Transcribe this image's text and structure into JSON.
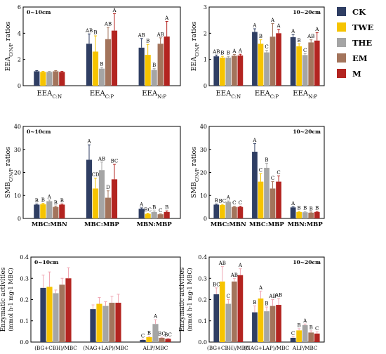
{
  "colors": {
    "CK": "#2f3e63",
    "TWE": "#f6c400",
    "THE": "#a5a5a5",
    "EM": "#a3745c",
    "M": "#b32420",
    "error_bar": "#f0a8b4"
  },
  "legend": {
    "items": [
      {
        "key": "CK",
        "label": "CK"
      },
      {
        "key": "TWE",
        "label": "TWE"
      },
      {
        "key": "THE",
        "label": "THE"
      },
      {
        "key": "EM",
        "label": "EM"
      },
      {
        "key": "M",
        "label": "M"
      }
    ]
  },
  "chart_data": [
    {
      "id": "a",
      "type": "bar",
      "depth_label": "0~10cm",
      "ylabel": "EEA C/N/P ratios",
      "ylabel_parts": {
        "base": "EEA",
        "sub": "C/N/P",
        "rest": " ratios"
      },
      "ylim": [
        0,
        6
      ],
      "yticks": [
        0,
        2,
        4,
        6
      ],
      "yticklabels": [
        "0",
        "2",
        "4",
        "6"
      ],
      "categories": [
        "EEA C:N",
        "EEA C:P",
        "EEA N:P"
      ],
      "category_parts": [
        {
          "base": "EEA",
          "sub": "C:N"
        },
        {
          "base": "EEA",
          "sub": "C:P"
        },
        {
          "base": "EEA",
          "sub": "N:P"
        }
      ],
      "series": [
        {
          "name": "CK",
          "values": [
            1.1,
            3.2,
            2.9
          ],
          "errors": [
            0.05,
            0.75,
            0.7
          ],
          "letters": [
            "",
            "AB",
            "AB"
          ]
        },
        {
          "name": "TWE",
          "values": [
            1.05,
            2.6,
            2.35
          ],
          "errors": [
            0.05,
            1.2,
            0.8
          ],
          "letters": [
            "",
            "B",
            "B"
          ]
        },
        {
          "name": "THE",
          "values": [
            1.05,
            1.3,
            1.2
          ],
          "errors": [
            0.05,
            0.1,
            0.1
          ],
          "letters": [
            "",
            "B",
            "B"
          ]
        },
        {
          "name": "EM",
          "values": [
            1.1,
            3.55,
            3.2
          ],
          "errors": [
            0.05,
            0.9,
            0.45
          ],
          "letters": [
            "",
            "AB",
            "AB"
          ]
        },
        {
          "name": "M",
          "values": [
            1.05,
            4.2,
            3.75
          ],
          "errors": [
            0.05,
            1.3,
            1.15
          ],
          "letters": [
            "",
            "A",
            "A"
          ]
        }
      ]
    },
    {
      "id": "b",
      "type": "bar",
      "depth_label": "10~20cm",
      "ylabel": "EEA C/N/P ratios",
      "ylabel_parts": {
        "base": "EEA",
        "sub": "C/N/P",
        "rest": " ratios"
      },
      "ylim": [
        0,
        3
      ],
      "yticks": [
        0,
        1,
        2,
        3
      ],
      "yticklabels": [
        "0",
        "1",
        "2",
        "3"
      ],
      "categories": [
        "EEA C:N",
        "EEA C:P",
        "EEA N:P"
      ],
      "category_parts": [
        {
          "base": "EEA",
          "sub": "C:N"
        },
        {
          "base": "EEA",
          "sub": "C:P"
        },
        {
          "base": "EEA",
          "sub": "N:P"
        }
      ],
      "series": [
        {
          "name": "CK",
          "values": [
            1.12,
            2.05,
            1.85
          ],
          "errors": [
            0.05,
            0.12,
            0.1
          ],
          "letters": [
            "AB",
            "A",
            "A"
          ]
        },
        {
          "name": "TWE",
          "values": [
            1.07,
            1.6,
            1.5
          ],
          "errors": [
            0.05,
            0.15,
            0.1
          ],
          "letters": [
            "B",
            "B",
            "B"
          ]
        },
        {
          "name": "THE",
          "values": [
            1.07,
            1.27,
            1.17
          ],
          "errors": [
            0.05,
            0.08,
            0.05
          ],
          "letters": [
            "B",
            "C",
            "C"
          ]
        },
        {
          "name": "EM",
          "values": [
            1.14,
            1.87,
            1.65
          ],
          "errors": [
            0.05,
            0.5,
            0.1
          ],
          "letters": [
            "A",
            "A",
            "AB"
          ]
        },
        {
          "name": "M",
          "values": [
            1.15,
            2.0,
            1.72
          ],
          "errors": [
            0.05,
            0.15,
            0.3
          ],
          "letters": [
            "A",
            "A",
            "A"
          ]
        }
      ]
    },
    {
      "id": "c",
      "type": "bar",
      "depth_label": "0~10cm",
      "ylabel": "SMB C/N/P ratios",
      "ylabel_parts": {
        "base": "SMB",
        "sub": "C/N/P",
        "rest": " ratios"
      },
      "ylim": [
        0,
        40
      ],
      "yticks": [
        0,
        10,
        20,
        30,
        40
      ],
      "yticklabels": [
        "0",
        "10",
        "20",
        "30",
        "40"
      ],
      "categories": [
        "MBC:MBN",
        "MBC:MBP",
        "MBN:MBP"
      ],
      "series": [
        {
          "name": "CK",
          "values": [
            6.0,
            25.5,
            4.2
          ],
          "errors": [
            0.3,
            6.5,
            0.4
          ],
          "letters": [
            "B",
            "A",
            "A"
          ]
        },
        {
          "name": "TWE",
          "values": [
            6.2,
            13.0,
            2.0
          ],
          "errors": [
            0.3,
            4.5,
            0.3
          ],
          "letters": [
            "B",
            "CD",
            "BC"
          ]
        },
        {
          "name": "THE",
          "values": [
            7.5,
            21.0,
            2.8
          ],
          "errors": [
            0.5,
            3.5,
            0.5
          ],
          "letters": [
            "A",
            "AB",
            "B"
          ]
        },
        {
          "name": "EM",
          "values": [
            5.0,
            9.0,
            1.8
          ],
          "errors": [
            0.4,
            3.0,
            0.2
          ],
          "letters": [
            "B",
            "D",
            "C"
          ]
        },
        {
          "name": "M",
          "values": [
            6.0,
            17.0,
            2.8
          ],
          "errors": [
            0.3,
            6.5,
            0.5
          ],
          "letters": [
            "B",
            "BC",
            "B"
          ]
        }
      ]
    },
    {
      "id": "d",
      "type": "bar",
      "depth_label": "10~20cm",
      "ylabel": "SMB C/N/P ratios",
      "ylabel_parts": {
        "base": "SMB",
        "sub": "C/N/P",
        "rest": " ratios"
      },
      "ylim": [
        0,
        40
      ],
      "yticks": [
        0,
        10,
        20,
        30,
        40
      ],
      "yticklabels": [
        "0",
        "10",
        "20",
        "30",
        "40"
      ],
      "categories": [
        "MBC:MBN",
        "MBC:MBP",
        "MBN:MBP"
      ],
      "series": [
        {
          "name": "CK",
          "values": [
            6.0,
            29.0,
            4.8
          ],
          "errors": [
            0.3,
            3.5,
            0.3
          ],
          "letters": [
            "B",
            "A",
            "A"
          ]
        },
        {
          "name": "TWE",
          "values": [
            5.8,
            16.0,
            2.8
          ],
          "errors": [
            0.3,
            3.5,
            0.3
          ],
          "letters": [
            "BC",
            "C",
            "B"
          ]
        },
        {
          "name": "THE",
          "values": [
            7.2,
            22.0,
            2.7
          ],
          "errors": [
            0.4,
            2.0,
            0.3
          ],
          "letters": [
            "A",
            "B",
            "B"
          ]
        },
        {
          "name": "EM",
          "values": [
            5.0,
            13.0,
            2.5
          ],
          "errors": [
            0.3,
            3.0,
            0.3
          ],
          "letters": [
            "C",
            "C",
            "B"
          ]
        },
        {
          "name": "M",
          "values": [
            5.0,
            16.0,
            2.8
          ],
          "errors": [
            0.3,
            2.5,
            0.3
          ],
          "letters": [
            "C",
            "C",
            "B"
          ]
        }
      ]
    },
    {
      "id": "e",
      "type": "bar",
      "depth_label": "0~10cm",
      "ylabel": "Enzymatic activities (mmol h-1 mg-1 MBC)",
      "ylabel_line1": "Enzymatic activities",
      "ylabel_line2": "(mmol h-1 mg-1 MBC)",
      "ylim": [
        0,
        0.4
      ],
      "yticks": [
        0,
        0.1,
        0.2,
        0.3,
        0.4
      ],
      "yticklabels": [
        "0.0",
        "0.1",
        "0.2",
        "0.3",
        "0.4"
      ],
      "categories": [
        "(BG+CBH)/MBC",
        "(NAG+LAP)/MBC",
        "ALP/MBC"
      ],
      "series": [
        {
          "name": "CK",
          "values": [
            0.255,
            0.155,
            0.01
          ],
          "errors": [
            0.06,
            0.02,
            0.003
          ],
          "letters": [
            "",
            "",
            "C"
          ]
        },
        {
          "name": "TWE",
          "values": [
            0.26,
            0.18,
            0.023
          ],
          "errors": [
            0.07,
            0.03,
            0.003
          ],
          "letters": [
            "",
            "",
            "B"
          ]
        },
        {
          "name": "THE",
          "values": [
            0.23,
            0.17,
            0.085
          ],
          "errors": [
            0.015,
            0.02,
            0.02
          ],
          "letters": [
            "",
            "",
            "A"
          ]
        },
        {
          "name": "EM",
          "values": [
            0.27,
            0.185,
            0.02
          ],
          "errors": [
            0.03,
            0.03,
            0.003
          ],
          "letters": [
            "",
            "",
            "BC"
          ]
        },
        {
          "name": "M",
          "values": [
            0.3,
            0.185,
            0.015
          ],
          "errors": [
            0.05,
            0.04,
            0.003
          ],
          "letters": [
            "",
            "",
            "BC"
          ]
        }
      ]
    },
    {
      "id": "f",
      "type": "bar",
      "depth_label": "10~20cm",
      "ylabel": "Enzymatic activities (mmol h-1 mg-1 MBC)",
      "ylabel_line1": "Enzymatic activities",
      "ylabel_line2": "(mmol h-1 mg-1 MBC)",
      "ylim": [
        0,
        0.4
      ],
      "yticks": [
        0,
        0.1,
        0.2,
        0.3,
        0.4
      ],
      "yticklabels": [
        "0.0",
        "0.1",
        "0.2",
        "0.3",
        "0.4"
      ],
      "categories": [
        "(BG+CBH)/MBC",
        "(NAG+LAP)/MBC",
        "ALP/MBC"
      ],
      "series": [
        {
          "name": "CK",
          "values": [
            0.225,
            0.14,
            0.02
          ],
          "errors": [
            0.03,
            0.03,
            0.005
          ],
          "letters": [
            "BC",
            "B",
            "C"
          ]
        },
        {
          "name": "TWE",
          "values": [
            0.285,
            0.205,
            0.055
          ],
          "errors": [
            0.07,
            0.035,
            0.008
          ],
          "letters": [
            "AB",
            "A",
            "B"
          ]
        },
        {
          "name": "THE",
          "values": [
            0.18,
            0.145,
            0.08
          ],
          "errors": [
            0.02,
            0.02,
            0.005
          ],
          "letters": [
            "C",
            "B",
            "A"
          ]
        },
        {
          "name": "EM",
          "values": [
            0.285,
            0.17,
            0.045
          ],
          "errors": [
            0.015,
            0.03,
            0.008
          ],
          "letters": [
            "AB",
            "AB",
            "B"
          ]
        },
        {
          "name": "M",
          "values": [
            0.315,
            0.175,
            0.04
          ],
          "errors": [
            0.03,
            0.03,
            0.008
          ],
          "letters": [
            "A",
            "AB",
            "C"
          ]
        }
      ]
    }
  ]
}
